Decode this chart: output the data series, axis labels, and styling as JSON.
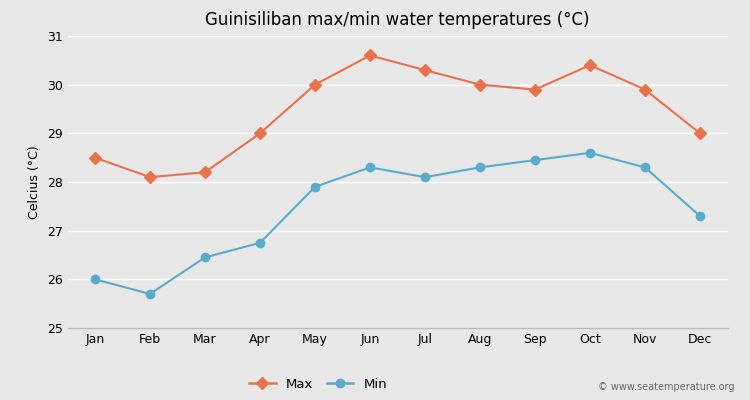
{
  "title": "Guinisiliban max/min water temperatures (°C)",
  "ylabel": "Celcius (°C)",
  "months": [
    "Jan",
    "Feb",
    "Mar",
    "Apr",
    "May",
    "Jun",
    "Jul",
    "Aug",
    "Sep",
    "Oct",
    "Nov",
    "Dec"
  ],
  "max_temps": [
    28.5,
    28.1,
    28.2,
    29.0,
    30.0,
    30.6,
    30.3,
    30.0,
    29.9,
    30.4,
    29.9,
    29.0
  ],
  "min_temps": [
    26.0,
    25.7,
    26.45,
    26.75,
    27.9,
    28.3,
    28.1,
    28.3,
    28.45,
    28.6,
    28.3,
    27.3
  ],
  "max_color": "#e8724a",
  "min_color": "#5aaccc",
  "bg_color": "#e8e8e8",
  "plot_bg_color": "#e8e8e8",
  "ylim": [
    25,
    31
  ],
  "yticks": [
    25,
    26,
    27,
    28,
    29,
    30,
    31
  ],
  "watermark": "© www.seatemperature.org",
  "legend_max": "Max",
  "legend_min": "Min",
  "title_fontsize": 12,
  "axis_fontsize": 9,
  "ylabel_fontsize": 9
}
